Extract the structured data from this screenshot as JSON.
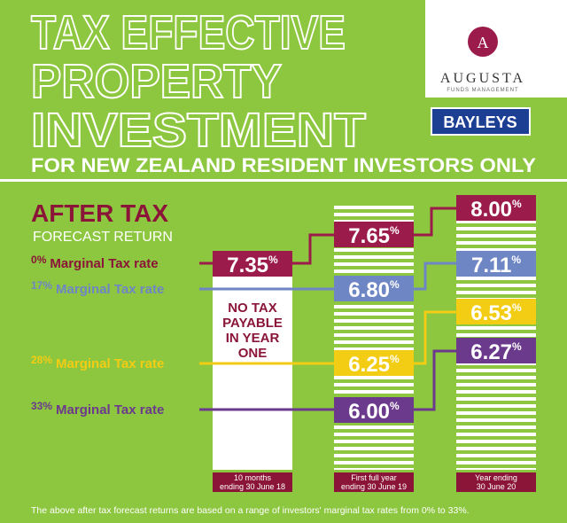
{
  "header": {
    "title_lines": [
      "TAX EFFECTIVE",
      "PROPERTY",
      "INVESTMENT"
    ],
    "subtitle": "FOR NEW ZEALAND RESIDENT INVESTORS ONLY"
  },
  "logos": {
    "monogram": "A",
    "augusta": "AUGUSTA",
    "augusta_tagline": "FUNDS MANAGEMENT",
    "bayleys": "BAYLEYS"
  },
  "heading": {
    "title": "AFTER TAX",
    "subtitle": "FORECAST RETURN"
  },
  "no_tax_note": [
    "NO TAX",
    "PAYABLE",
    "IN YEAR",
    "ONE"
  ],
  "rows": [
    {
      "rate": "0",
      "rate_unit": "%",
      "label": "Marginal Tax rate",
      "year1": {
        "value": "7.35",
        "unit": "%"
      },
      "year2": {
        "value": "7.65",
        "unit": "%"
      },
      "year3": {
        "value": "8.00",
        "unit": "%"
      }
    },
    {
      "rate": "17",
      "rate_unit": "%",
      "label": "Marginal Tax rate",
      "year2": {
        "value": "6.80",
        "unit": "%"
      },
      "year3": {
        "value": "7.11",
        "unit": "%"
      }
    },
    {
      "rate": "28",
      "rate_unit": "%",
      "label": "Marginal Tax rate",
      "year2": {
        "value": "6.25",
        "unit": "%"
      },
      "year3": {
        "value": "6.53",
        "unit": "%"
      }
    },
    {
      "rate": "33",
      "rate_unit": "%",
      "label": "Marginal Tax rate",
      "year2": {
        "value": "6.00",
        "unit": "%"
      },
      "year3": {
        "value": "6.27",
        "unit": "%"
      }
    }
  ],
  "columns": [
    [
      "10 months",
      "ending 30 June 18"
    ],
    [
      "First full year",
      "ending 30 June 19"
    ],
    [
      "Year ending",
      "30 June 20"
    ]
  ],
  "footer": "The above after tax forecast returns are based on a range of investors' marginal tax rates from 0% to 33%."
}
